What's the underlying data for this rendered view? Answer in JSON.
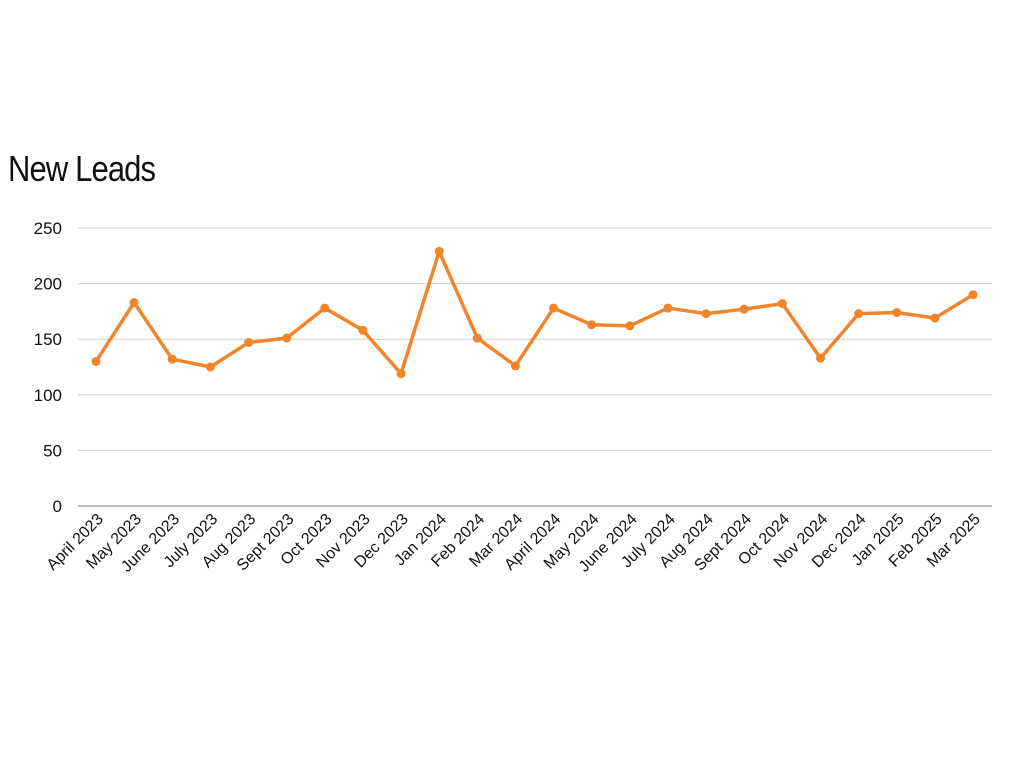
{
  "chart_data": {
    "type": "line",
    "title": "New Leads",
    "xlabel": "",
    "ylabel": "",
    "ylim": [
      0,
      250
    ],
    "yticks": [
      0,
      50,
      100,
      150,
      200,
      250
    ],
    "grid": true,
    "legend": "none",
    "categories": [
      "April 2023",
      "May 2023",
      "June 2023",
      "July 2023",
      "Aug 2023",
      "Sept 2023",
      "Oct 2023",
      "Nov 2023",
      "Dec 2023",
      "Jan 2024",
      "Feb 2024",
      "Mar 2024",
      "April 2024",
      "May 2024",
      "June 2024",
      "July 2024",
      "Aug 2024",
      "Sept 2024",
      "Oct 2024",
      "Nov 2024",
      "Dec 2024",
      "Jan 2025",
      "Feb 2025",
      "Mar 2025"
    ],
    "series": [
      {
        "color": "#f2842a",
        "values": [
          130,
          183,
          132,
          125,
          147,
          151,
          178,
          158,
          119,
          229,
          151,
          126,
          178,
          163,
          162,
          178,
          173,
          177,
          182,
          133,
          173,
          174,
          169,
          190
        ]
      }
    ]
  }
}
